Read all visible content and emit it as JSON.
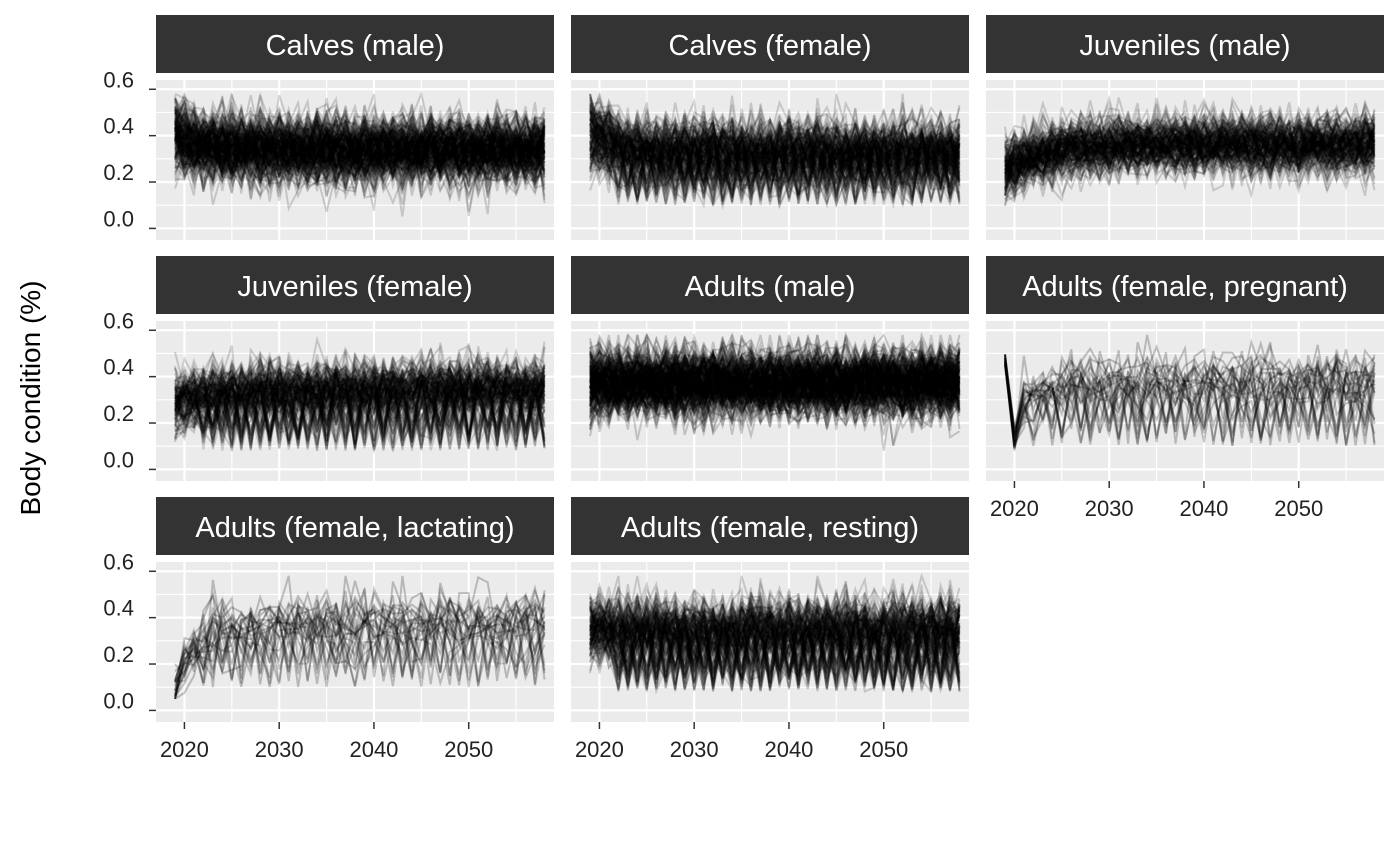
{
  "chart_data": {
    "type": "line",
    "layout": "facet-wrap 3 columns, free-standing x axis on bottom panel of each column",
    "ylabel": "Body condition (%)",
    "xlabel": "",
    "xlim": [
      2017,
      2059
    ],
    "ylim": [
      -0.05,
      0.64
    ],
    "x_ticks": [
      2020,
      2030,
      2040,
      2050
    ],
    "y_ticks": [
      0.0,
      0.2,
      0.4,
      0.6
    ],
    "x_tick_labels": [
      "2020",
      "2030",
      "2040",
      "2050"
    ],
    "y_tick_labels": [
      "0.0",
      "0.2",
      "0.4",
      "0.6"
    ],
    "line_color": "#000000",
    "panel_background": "#ebebeb",
    "strip_background": "#333333",
    "grid": true,
    "time_range": [
      2019,
      2058
    ],
    "panels": [
      {
        "title": "Calves (male)",
        "profile": "calf",
        "n_lines": 220,
        "alpha": 0.16,
        "start_range": [
          0.3,
          0.5
        ],
        "mean_range": [
          0.3,
          0.38
        ],
        "spread": 0.07,
        "drop_fraction": 0.0,
        "drop_low": 0.2
      },
      {
        "title": "Calves (female)",
        "profile": "calf",
        "n_lines": 170,
        "alpha": 0.16,
        "start_range": [
          0.3,
          0.5
        ],
        "mean_range": [
          0.3,
          0.36
        ],
        "spread": 0.07,
        "drop_fraction": 0.3,
        "drop_low": 0.1
      },
      {
        "title": "Juveniles (male)",
        "profile": "juvenile",
        "n_lines": 170,
        "alpha": 0.16,
        "start_range": [
          0.2,
          0.3
        ],
        "mean_range": [
          0.32,
          0.4
        ],
        "spread": 0.06,
        "drop_fraction": 0.0,
        "drop_low": 0.2
      },
      {
        "title": "Juveniles (female)",
        "profile": "juvenile",
        "n_lines": 150,
        "alpha": 0.16,
        "start_range": [
          0.22,
          0.35
        ],
        "mean_range": [
          0.32,
          0.38
        ],
        "spread": 0.06,
        "drop_fraction": 0.35,
        "drop_low": 0.08
      },
      {
        "title": "Adults (male)",
        "profile": "adult",
        "n_lines": 240,
        "alpha": 0.18,
        "start_range": [
          0.25,
          0.5
        ],
        "mean_range": [
          0.33,
          0.41
        ],
        "spread": 0.07,
        "drop_fraction": 0.0,
        "drop_low": 0.2
      },
      {
        "title": "Adults (female, pregnant)",
        "profile": "pregnant",
        "n_lines": 28,
        "alpha": 0.22,
        "start_range": [
          0.45,
          0.5
        ],
        "mean_range": [
          0.33,
          0.42
        ],
        "spread": 0.06,
        "drop_fraction": 0.45,
        "drop_low": 0.1
      },
      {
        "title": "Adults (female, lactating)",
        "profile": "lactating",
        "n_lines": 26,
        "alpha": 0.22,
        "start_range": [
          0.07,
          0.1
        ],
        "mean_range": [
          0.33,
          0.42
        ],
        "spread": 0.06,
        "drop_fraction": 0.45,
        "drop_low": 0.1
      },
      {
        "title": "Adults (female, resting)",
        "profile": "adult",
        "n_lines": 150,
        "alpha": 0.16,
        "start_range": [
          0.25,
          0.45
        ],
        "mean_range": [
          0.32,
          0.38
        ],
        "spread": 0.07,
        "drop_fraction": 0.45,
        "drop_low": 0.08
      }
    ]
  }
}
